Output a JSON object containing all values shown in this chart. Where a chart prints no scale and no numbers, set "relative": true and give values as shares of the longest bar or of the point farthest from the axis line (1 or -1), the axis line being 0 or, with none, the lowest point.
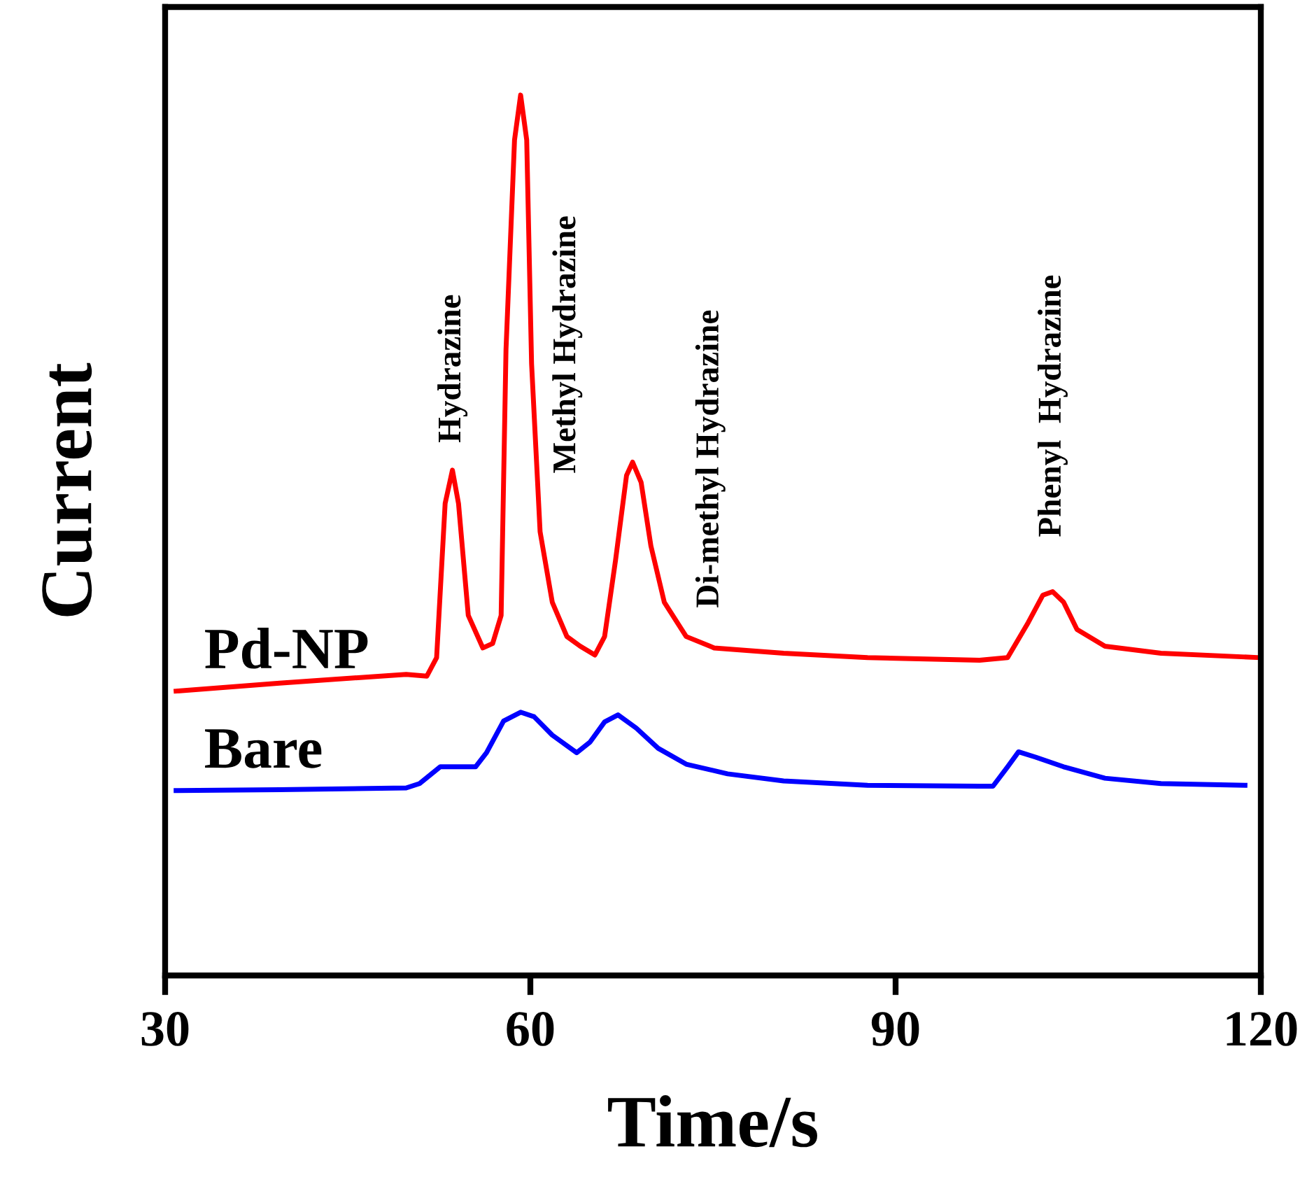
{
  "chart_data": {
    "type": "line",
    "relative": true,
    "xlabel": "Time/s",
    "ylabel": "Current",
    "xlim": [
      30,
      120
    ],
    "xticks": [
      30,
      60,
      90,
      120
    ],
    "grid": false,
    "legend": false,
    "marker": "none",
    "line_style": "solid",
    "series": [
      {
        "name": "Pd-NP",
        "color": "#ff0000",
        "x": [
          30.9,
          39.4,
          49.8,
          51.5,
          52.3,
          53.0,
          53.6,
          54.1,
          54.9,
          56.1,
          56.9,
          57.6,
          58.0,
          58.7,
          59.2,
          59.7,
          60.1,
          60.8,
          61.8,
          63.0,
          64.1,
          65.3,
          66.1,
          67.0,
          67.9,
          68.4,
          69.1,
          69.9,
          71.0,
          72.8,
          75.1,
          80.8,
          87.7,
          96.9,
          99.2,
          100.9,
          102.1,
          102.9,
          103.8,
          104.9,
          107.2,
          111.8,
          119.9
        ],
        "values": [
          0.323,
          0.332,
          0.342,
          0.34,
          0.361,
          0.536,
          0.574,
          0.536,
          0.409,
          0.372,
          0.377,
          0.409,
          0.711,
          0.949,
          1.0,
          0.949,
          0.695,
          0.504,
          0.424,
          0.385,
          0.374,
          0.364,
          0.385,
          0.472,
          0.568,
          0.583,
          0.56,
          0.488,
          0.424,
          0.385,
          0.372,
          0.366,
          0.361,
          0.358,
          0.361,
          0.401,
          0.432,
          0.436,
          0.424,
          0.393,
          0.374,
          0.366,
          0.361
        ]
      },
      {
        "name": "Bare",
        "color": "#0000ff",
        "x": [
          30.9,
          39.4,
          49.8,
          50.9,
          52.6,
          53.8,
          55.5,
          56.4,
          57.8,
          59.2,
          60.3,
          61.8,
          63.8,
          64.9,
          66.1,
          67.2,
          68.7,
          70.5,
          72.8,
          76.2,
          80.8,
          87.7,
          96.9,
          98.0,
          99.2,
          100.1,
          101.5,
          103.8,
          107.2,
          111.8,
          118.7
        ],
        "values": [
          0.21,
          0.211,
          0.213,
          0.218,
          0.237,
          0.237,
          0.237,
          0.253,
          0.289,
          0.299,
          0.294,
          0.273,
          0.253,
          0.265,
          0.288,
          0.296,
          0.281,
          0.258,
          0.24,
          0.229,
          0.221,
          0.216,
          0.215,
          0.215,
          0.237,
          0.254,
          0.248,
          0.237,
          0.224,
          0.218,
          0.216
        ]
      }
    ],
    "annotations": [
      {
        "text": "Hydrazine",
        "x": 53.6,
        "y": 0.574
      },
      {
        "text": "Methyl Hydrazine",
        "x": 60.8,
        "y": 0.504
      },
      {
        "text": "Di-methyl Hydrazine",
        "x": 68.4,
        "y": 0.583
      },
      {
        "text": "Phenyl  Hydrazine",
        "x": 102.9,
        "y": 0.436
      }
    ]
  }
}
